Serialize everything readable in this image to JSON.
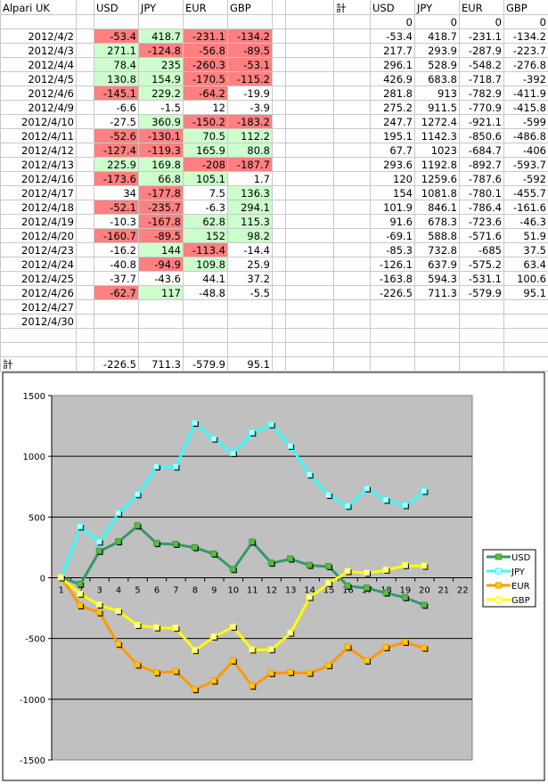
{
  "sheet": {
    "title": "Alpari UK",
    "headers": [
      "USD",
      "JPY",
      "EUR",
      "GBP"
    ],
    "dates": [
      "2012/4/2",
      "2012/4/3",
      "2012/4/4",
      "2012/4/5",
      "2012/4/6",
      "2012/4/9",
      "2012/4/10",
      "2012/4/11",
      "2012/4/12",
      "2012/4/13",
      "2012/4/16",
      "2012/4/17",
      "2012/4/18",
      "2012/4/19",
      "2012/4/20",
      "2012/4/23",
      "2012/4/24",
      "2012/4/25",
      "2012/4/26",
      "2012/4/27",
      "2012/4/30"
    ],
    "daily": [
      [
        -53.4,
        418.7,
        -231.1,
        -134.2
      ],
      [
        271.1,
        -124.8,
        -56.8,
        -89.5
      ],
      [
        78.4,
        235,
        -260.3,
        -53.1
      ],
      [
        130.8,
        154.9,
        -170.5,
        -115.2
      ],
      [
        -145.1,
        229.2,
        -64.2,
        -19.9
      ],
      [
        -6.6,
        -1.5,
        12,
        -3.9
      ],
      [
        -27.5,
        360.9,
        -150.2,
        -183.2
      ],
      [
        -52.6,
        -130.1,
        70.5,
        112.2
      ],
      [
        -127.4,
        -119.3,
        165.9,
        80.8
      ],
      [
        225.9,
        169.8,
        -208,
        -187.7
      ],
      [
        -173.6,
        66.8,
        105.1,
        1.7
      ],
      [
        34,
        -177.8,
        7.5,
        136.3
      ],
      [
        -52.1,
        -235.7,
        -6.3,
        294.1
      ],
      [
        -10.3,
        -167.8,
        62.8,
        115.3
      ],
      [
        -160.7,
        -89.5,
        152,
        98.2
      ],
      [
        -16.2,
        144,
        -113.4,
        -14.4
      ],
      [
        -40.8,
        -94.9,
        109.8,
        25.9
      ],
      [
        -37.7,
        -43.6,
        44.1,
        37.2
      ],
      [
        -62.7,
        117,
        -48.8,
        -5.5
      ]
    ],
    "highlight": [
      [
        "r",
        "g",
        "r",
        "r"
      ],
      [
        "g",
        "r",
        "r",
        "r"
      ],
      [
        "g",
        "g",
        "r",
        "r"
      ],
      [
        "g",
        "g",
        "r",
        "r"
      ],
      [
        "r",
        "g",
        "r",
        ""
      ],
      [
        "",
        "",
        "",
        ""
      ],
      [
        "",
        "g",
        "r",
        "r"
      ],
      [
        "r",
        "r",
        "g",
        "g"
      ],
      [
        "r",
        "r",
        "g",
        "g"
      ],
      [
        "g",
        "g",
        "r",
        "r"
      ],
      [
        "r",
        "g",
        "g",
        ""
      ],
      [
        "",
        "r",
        "",
        "g"
      ],
      [
        "r",
        "r",
        "",
        "g"
      ],
      [
        "",
        "r",
        "g",
        "g"
      ],
      [
        "r",
        "r",
        "g",
        "g"
      ],
      [
        "",
        "g",
        "r",
        ""
      ],
      [
        "",
        "r",
        "g",
        ""
      ],
      [
        "",
        "",
        "",
        ""
      ],
      [
        "r",
        "g",
        "",
        ""
      ]
    ],
    "highlight_colors": {
      "r": "#ff8080",
      "g": "#ccffcc"
    },
    "total_label": "計",
    "totals": [
      -226.5,
      711.3,
      -579.9,
      95.1
    ],
    "cumulative_label": "計",
    "cumulative_headers": [
      "USD",
      "JPY",
      "EUR",
      "GBP"
    ],
    "cumulative": [
      [
        0,
        0,
        0,
        0
      ],
      [
        -53.4,
        418.7,
        -231.1,
        -134.2
      ],
      [
        217.7,
        293.9,
        -287.9,
        -223.7
      ],
      [
        296.1,
        528.9,
        -548.2,
        -276.8
      ],
      [
        426.9,
        683.8,
        -718.7,
        -392
      ],
      [
        281.8,
        913,
        -782.9,
        -411.9
      ],
      [
        275.2,
        911.5,
        -770.9,
        -415.8
      ],
      [
        247.7,
        1272.4,
        -921.1,
        -599
      ],
      [
        195.1,
        1142.3,
        -850.6,
        -486.8
      ],
      [
        67.7,
        1023,
        -684.7,
        -406
      ],
      [
        293.6,
        1192.8,
        -892.7,
        -593.7
      ],
      [
        120,
        1259.6,
        -787.6,
        -592
      ],
      [
        154,
        1081.8,
        -780.1,
        -455.7
      ],
      [
        101.9,
        846.1,
        -786.4,
        -161.6
      ],
      [
        91.6,
        678.3,
        -723.6,
        -46.3
      ],
      [
        -69.1,
        588.8,
        -571.6,
        51.9
      ],
      [
        -85.3,
        732.8,
        -685,
        37.5
      ],
      [
        -126.1,
        637.9,
        -575.2,
        63.4
      ],
      [
        -163.8,
        594.3,
        -531.1,
        100.6
      ],
      [
        -226.5,
        711.3,
        -579.9,
        95.1
      ]
    ]
  },
  "chart_data": {
    "type": "line",
    "x": [
      1,
      2,
      3,
      4,
      5,
      6,
      7,
      8,
      9,
      10,
      11,
      12,
      13,
      14,
      15,
      16,
      17,
      18,
      19,
      20
    ],
    "x_ticks": [
      1,
      2,
      3,
      4,
      5,
      6,
      7,
      8,
      9,
      10,
      11,
      12,
      13,
      14,
      15,
      16,
      17,
      18,
      19,
      20,
      21,
      22
    ],
    "y_ticks": [
      1500,
      1000,
      500,
      0,
      -500,
      -1000,
      -1500
    ],
    "ylim": [
      -1500,
      1500
    ],
    "grid": "horizontal",
    "legend": "right",
    "plot_background": "#c0c0c0",
    "series": [
      {
        "name": "USD",
        "line_color": "#339966",
        "marker_color": "#66bb22",
        "values": [
          0,
          -53.4,
          217.7,
          296.1,
          426.9,
          281.8,
          275.2,
          247.7,
          195.1,
          67.7,
          293.6,
          120,
          154,
          101.9,
          91.6,
          -69.1,
          -85.3,
          -126.1,
          -163.8,
          -226.5
        ]
      },
      {
        "name": "JPY",
        "line_color": "#33ffff",
        "marker_color": "#ccffff",
        "values": [
          0,
          418.7,
          293.9,
          528.9,
          683.8,
          913,
          911.5,
          1272.4,
          1142.3,
          1023,
          1192.8,
          1259.6,
          1081.8,
          846.1,
          678.3,
          588.8,
          732.8,
          637.9,
          594.3,
          711.3
        ]
      },
      {
        "name": "EUR",
        "line_color": "#ff9900",
        "marker_color": "#ffcc00",
        "values": [
          0,
          -231.1,
          -287.9,
          -548.2,
          -718.7,
          -782.9,
          -770.9,
          -921.1,
          -850.6,
          -684.7,
          -892.7,
          -787.6,
          -780.1,
          -786.4,
          -723.6,
          -571.6,
          -685,
          -575.2,
          -531.1,
          -579.9
        ]
      },
      {
        "name": "GBP",
        "line_color": "#ffff00",
        "marker_color": "#ffffcc",
        "values": [
          0,
          -134.2,
          -223.7,
          -276.8,
          -392,
          -411.9,
          -415.8,
          -599,
          -486.8,
          -406,
          -593.7,
          -592,
          -455.7,
          -161.6,
          -46.3,
          51.9,
          37.5,
          63.4,
          100.6,
          95.1
        ]
      }
    ]
  }
}
